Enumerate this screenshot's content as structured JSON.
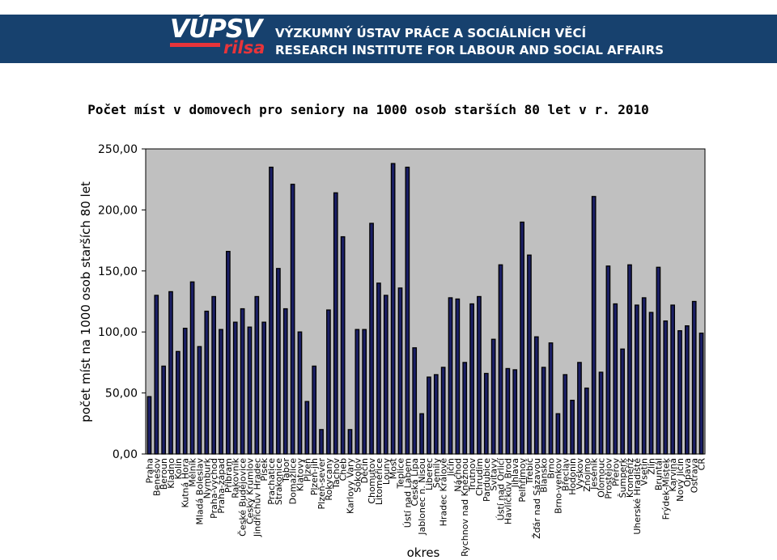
{
  "header": {
    "logo_main": "VÚPSV",
    "logo_sub": "rilsa",
    "institute_cz": "VÝZKUMNÝ ÚSTAV PRÁCE A SOCIÁLNÍCH VĚCÍ",
    "institute_en": "RESEARCH INSTITUTE FOR LABOUR AND SOCIAL AFFAIRS",
    "banner_color": "#17416e",
    "accent_color": "#e8343a"
  },
  "chart_data": {
    "type": "bar",
    "title": "Počet míst v domovech pro seniory na 1000 osob starších 80 let v r. 2010",
    "xlabel": "okres",
    "ylabel": "počet míst na 1000 osob starších 80 let",
    "ylim": [
      0,
      250
    ],
    "yticks": [
      "0,00",
      "50,00",
      "100,00",
      "150,00",
      "200,00",
      "250,00"
    ],
    "grid": false,
    "legend": "none",
    "plot_background": "#c0c0c0",
    "bar_color": "#1b1f66",
    "categories": [
      "Praha",
      "Benešov",
      "Beroun",
      "Kladno",
      "Kolín",
      "Kutná Hora",
      "Mělník",
      "Mladá Boleslav",
      "Nymburk",
      "Praha-východ",
      "Praha-západ",
      "Příbram",
      "Rakovník",
      "České Budějovice",
      "Český Krumlov",
      "Jindřichův Hradec",
      "Písek",
      "Prachatice",
      "Strakonice",
      "Tábor",
      "Domažlice",
      "Klatovy",
      "Plzeň",
      "Plzeň-jih",
      "Plzeň-sever",
      "Rokycany",
      "Tachov",
      "Cheb",
      "Karlovy Vary",
      "Sokolov",
      "Děčín",
      "Chomutov",
      "Litoměřice",
      "Louny",
      "Most",
      "Teplice",
      "Ústí nad Labem",
      "Česká Lípa",
      "Jablonec n. Nisou",
      "Liberec",
      "Semily",
      "Hradec Králové",
      "Jičín",
      "Náchod",
      "Rychnov nad Kněžnou",
      "Trutnov",
      "Chrudim",
      "Pardubice",
      "Svitavy",
      "Ústí nad Orlicí",
      "Havlíčkův Brod",
      "Jihlava",
      "Pelhřimov",
      "Třebíč",
      "Žďár nad Sázavou",
      "Blansko",
      "Brno",
      "Brno-venkov",
      "Břeclav",
      "Hodonín",
      "Vyškov",
      "Znojmo",
      "Jeseník",
      "Olomouc",
      "Prostějov",
      "Přerov",
      "Šumperk",
      "Kroměříž",
      "Uherské Hradiště",
      "Vsetín",
      "Zlín",
      "Bruntál",
      "Frýdek-Místek",
      "Karviná",
      "Nový Jičín",
      "Opava",
      "Ostrava",
      "ČR"
    ],
    "values": [
      47,
      130,
      72,
      133,
      84,
      103,
      141,
      88,
      117,
      129,
      102,
      166,
      108,
      119,
      104,
      129,
      108,
      235,
      152,
      119,
      221,
      100,
      43,
      72,
      20,
      118,
      214,
      178,
      20,
      102,
      102,
      189,
      140,
      130,
      238,
      136,
      235,
      87,
      33,
      63,
      65,
      71,
      128,
      127,
      75,
      123,
      129,
      66,
      94,
      155,
      70,
      69,
      190,
      163,
      96,
      71,
      91,
      33,
      65,
      44,
      75,
      54,
      211,
      67,
      154,
      123,
      86,
      155,
      122,
      128,
      116,
      153,
      109,
      122,
      101,
      105,
      125,
      99
    ]
  }
}
